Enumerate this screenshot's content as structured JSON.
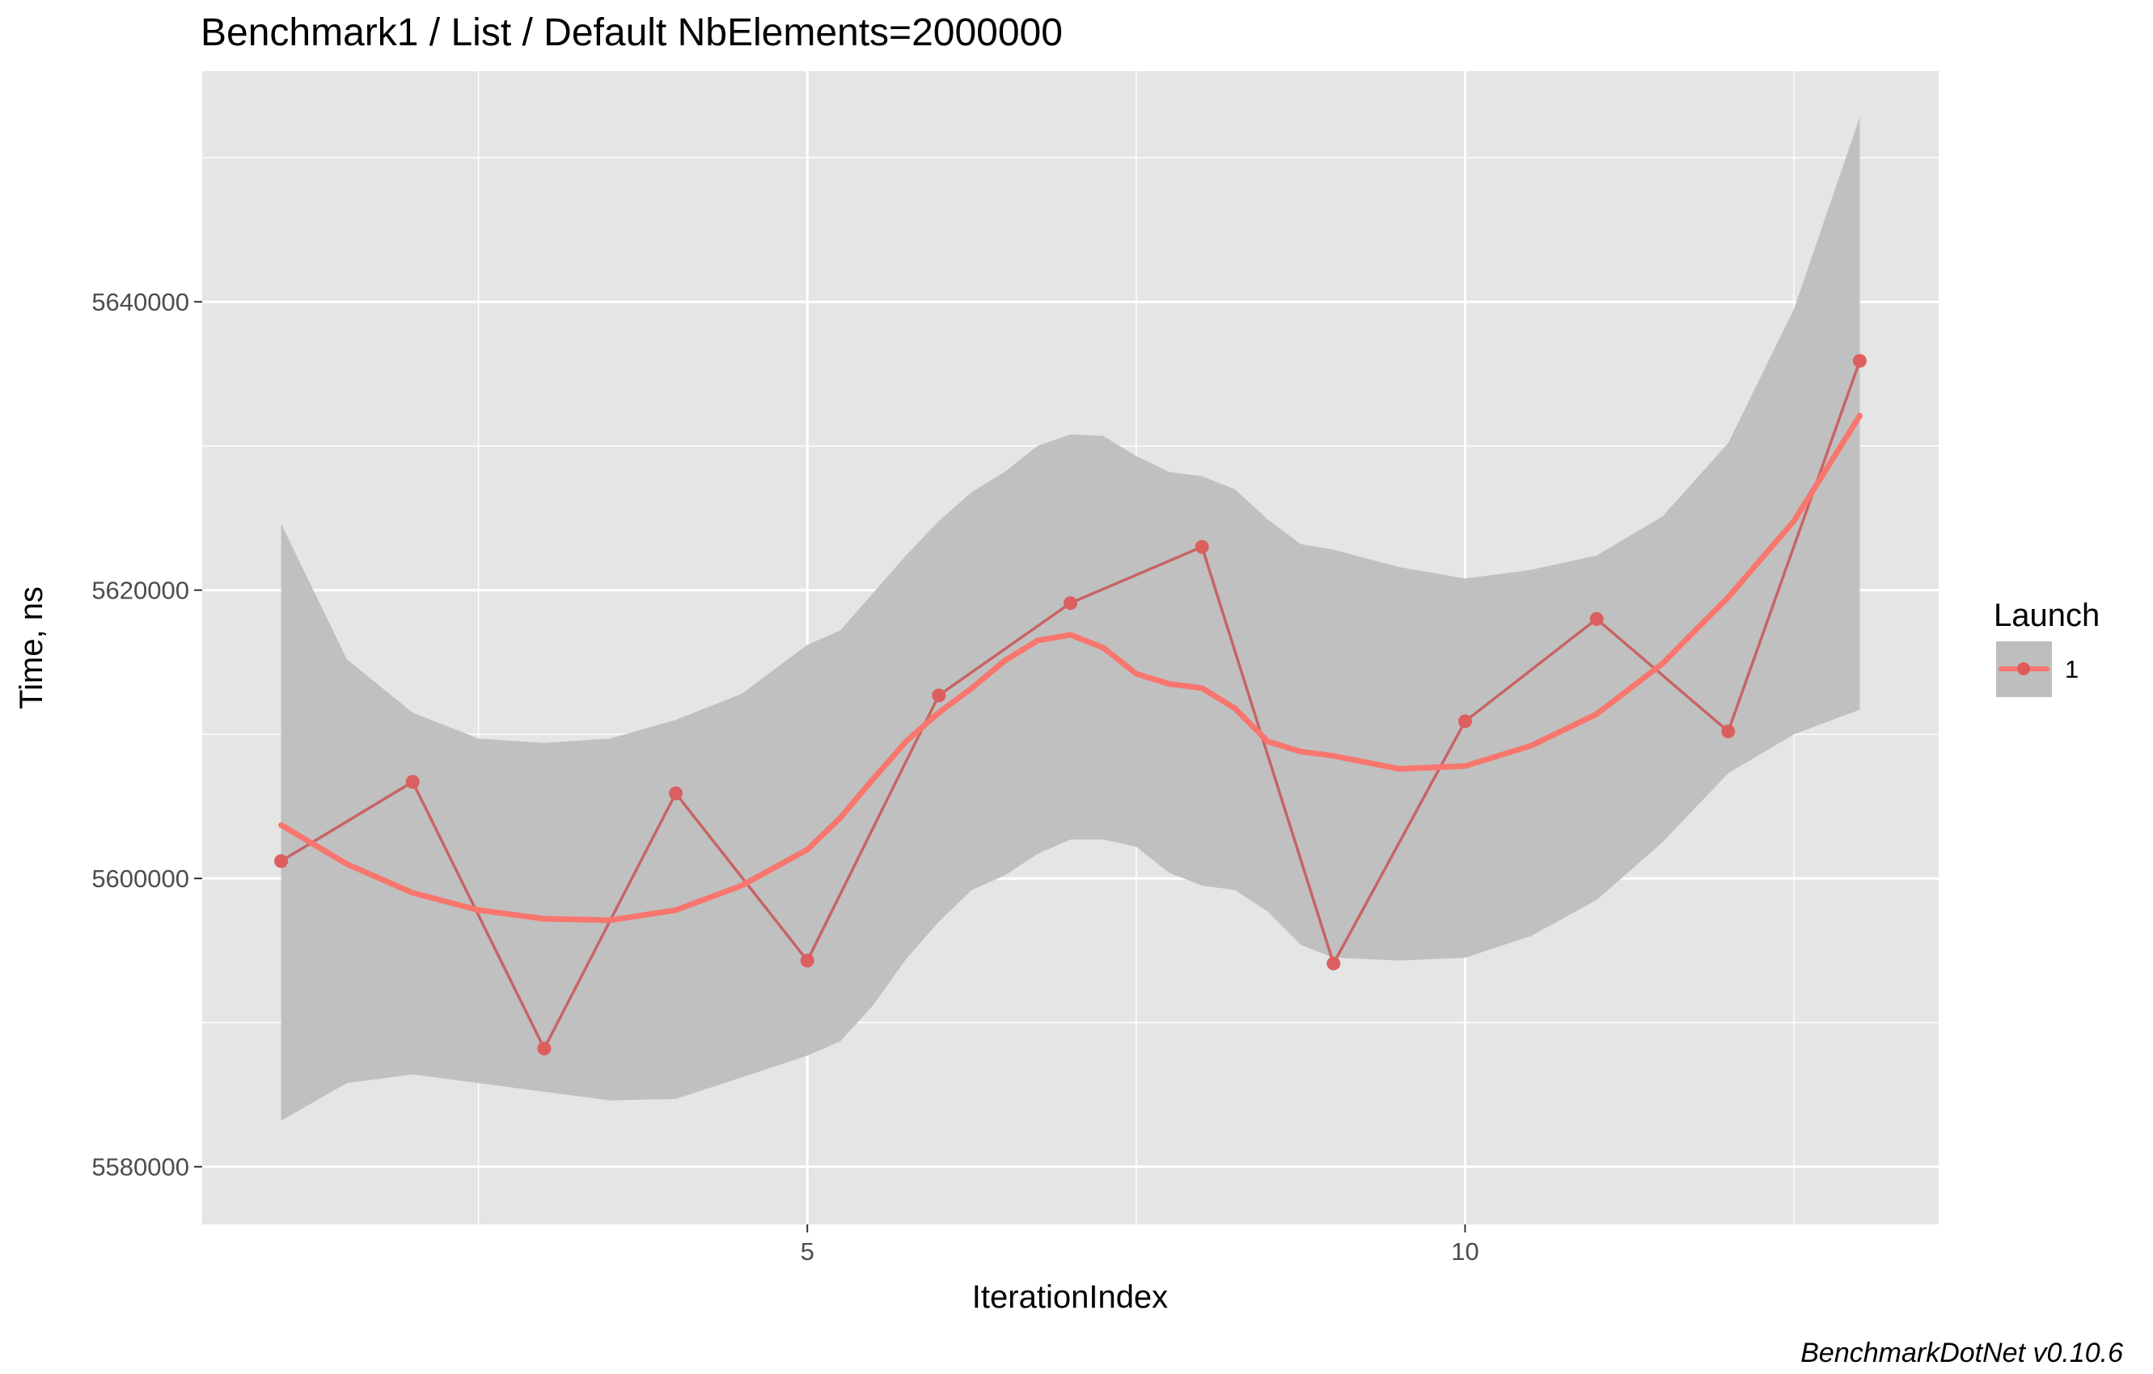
{
  "chart_data": {
    "type": "line",
    "title": "Benchmark1 / List / Default NbElements=2000000",
    "xlabel": "IterationIndex",
    "ylabel": "Time, ns",
    "caption": "BenchmarkDotNet v0.10.6",
    "xlim": [
      0.4,
      13.6
    ],
    "ylim": [
      5576000,
      5656000
    ],
    "x_major_ticks": [
      5,
      10
    ],
    "x_minor_ticks": [
      2.5,
      7.5,
      12.5
    ],
    "y_major_ticks": [
      5580000,
      5600000,
      5620000,
      5640000
    ],
    "y_minor_ticks": [
      5590000,
      5610000,
      5630000,
      5650000
    ],
    "x_tick_labels": [
      "5",
      "10"
    ],
    "y_tick_labels": [
      "5580000",
      "5600000",
      "5620000",
      "5640000"
    ],
    "grid": true,
    "legend": {
      "title": "Launch",
      "placement": "right",
      "entries": [
        "1"
      ]
    },
    "colors": {
      "line": "#f8766d",
      "raw_line": "#c86464",
      "band": "#bebebe",
      "panel": "#e5e5e5",
      "grid": "#ffffff"
    },
    "series": [
      {
        "name": "1",
        "x": [
          1,
          2,
          3,
          4,
          5,
          6,
          7,
          8,
          9,
          10,
          11,
          12,
          13
        ],
        "values": [
          5601200,
          5606700,
          5588200,
          5605900,
          5594300,
          5612700,
          5619100,
          5623000,
          5594100,
          5610900,
          5618000,
          5610200,
          5635900
        ]
      }
    ],
    "smooth": {
      "x": [
        1,
        1.5,
        2,
        2.5,
        3,
        3.5,
        4,
        4.5,
        5,
        5.25,
        5.5,
        5.75,
        6,
        6.25,
        6.5,
        6.75,
        7,
        7.25,
        7.5,
        7.75,
        8,
        8.25,
        8.5,
        8.75,
        9,
        9.5,
        10,
        10.5,
        11,
        11.5,
        12,
        12.5,
        13
      ],
      "values": [
        5603700,
        5601000,
        5599000,
        5597800,
        5597200,
        5597100,
        5597800,
        5599500,
        5602000,
        5604200,
        5606900,
        5609500,
        5611500,
        5613200,
        5615100,
        5616500,
        5616900,
        5616000,
        5614200,
        5613500,
        5613200,
        5611800,
        5609500,
        5608800,
        5608500,
        5607600,
        5607800,
        5609200,
        5611400,
        5614900,
        5619500,
        5624800,
        5632100
      ],
      "upper": [
        5624600,
        5615200,
        5611500,
        5609700,
        5609400,
        5609700,
        5611000,
        5612800,
        5616200,
        5617200,
        5619800,
        5622400,
        5624800,
        5626800,
        5628200,
        5630000,
        5630800,
        5630700,
        5629300,
        5628200,
        5627900,
        5627000,
        5624900,
        5623200,
        5622800,
        5621600,
        5620800,
        5621400,
        5622400,
        5625100,
        5630200,
        5639500,
        5652800
      ],
      "lower": [
        5583200,
        5585800,
        5586400,
        5585800,
        5585200,
        5584600,
        5584700,
        5586200,
        5587700,
        5588700,
        5591200,
        5594400,
        5597000,
        5599200,
        5600200,
        5601700,
        5602700,
        5602700,
        5602200,
        5600400,
        5599500,
        5599200,
        5597700,
        5595400,
        5594500,
        5594300,
        5594500,
        5596000,
        5598500,
        5602500,
        5607300,
        5610000,
        5611700
      ]
    }
  }
}
